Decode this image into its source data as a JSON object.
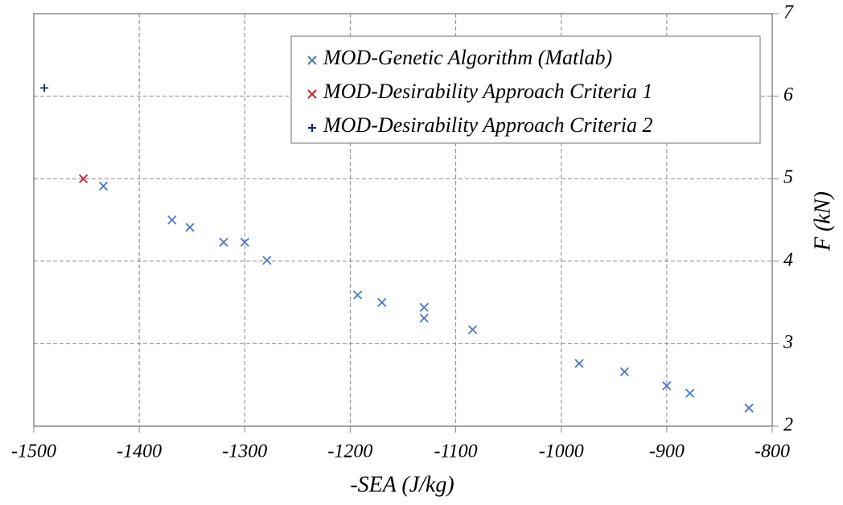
{
  "chart_data": {
    "type": "scatter",
    "xlabel": "-SEA (J/kg)",
    "ylabel": "F (kN)",
    "xlim": [
      -1500,
      -800
    ],
    "xticks": [
      -1500,
      -1400,
      -1300,
      -1200,
      -1100,
      -1000,
      -900,
      -800
    ],
    "ylim": [
      2,
      7
    ],
    "yticks": [
      2,
      3,
      4,
      5,
      6,
      7
    ],
    "grid": true,
    "legend": "upper right",
    "series": [
      {
        "name": "MOD-Genetic Algorithm (Matlab)",
        "color": "#4a78c2",
        "marker": "x",
        "x": [
          -1434,
          -1369,
          -1352,
          -1320,
          -1300,
          -1279,
          -1193,
          -1170,
          -1130,
          -1130,
          -1084,
          -983,
          -940,
          -900,
          -878,
          -822
        ],
        "values": [
          4.91,
          4.5,
          4.41,
          4.23,
          4.23,
          4.01,
          3.59,
          3.5,
          3.44,
          3.31,
          3.17,
          2.76,
          2.66,
          2.49,
          2.4,
          2.22
        ]
      },
      {
        "name": "MOD-Desirability Approach Criteria 1",
        "color": "#d0202a",
        "marker": "x",
        "x": [
          -1453
        ],
        "values": [
          5.0
        ]
      },
      {
        "name": "MOD-Desirability Approach Criteria 2",
        "color": "#1a2a5a",
        "marker": "+",
        "x": [
          -1490
        ],
        "values": [
          6.1
        ]
      }
    ]
  }
}
